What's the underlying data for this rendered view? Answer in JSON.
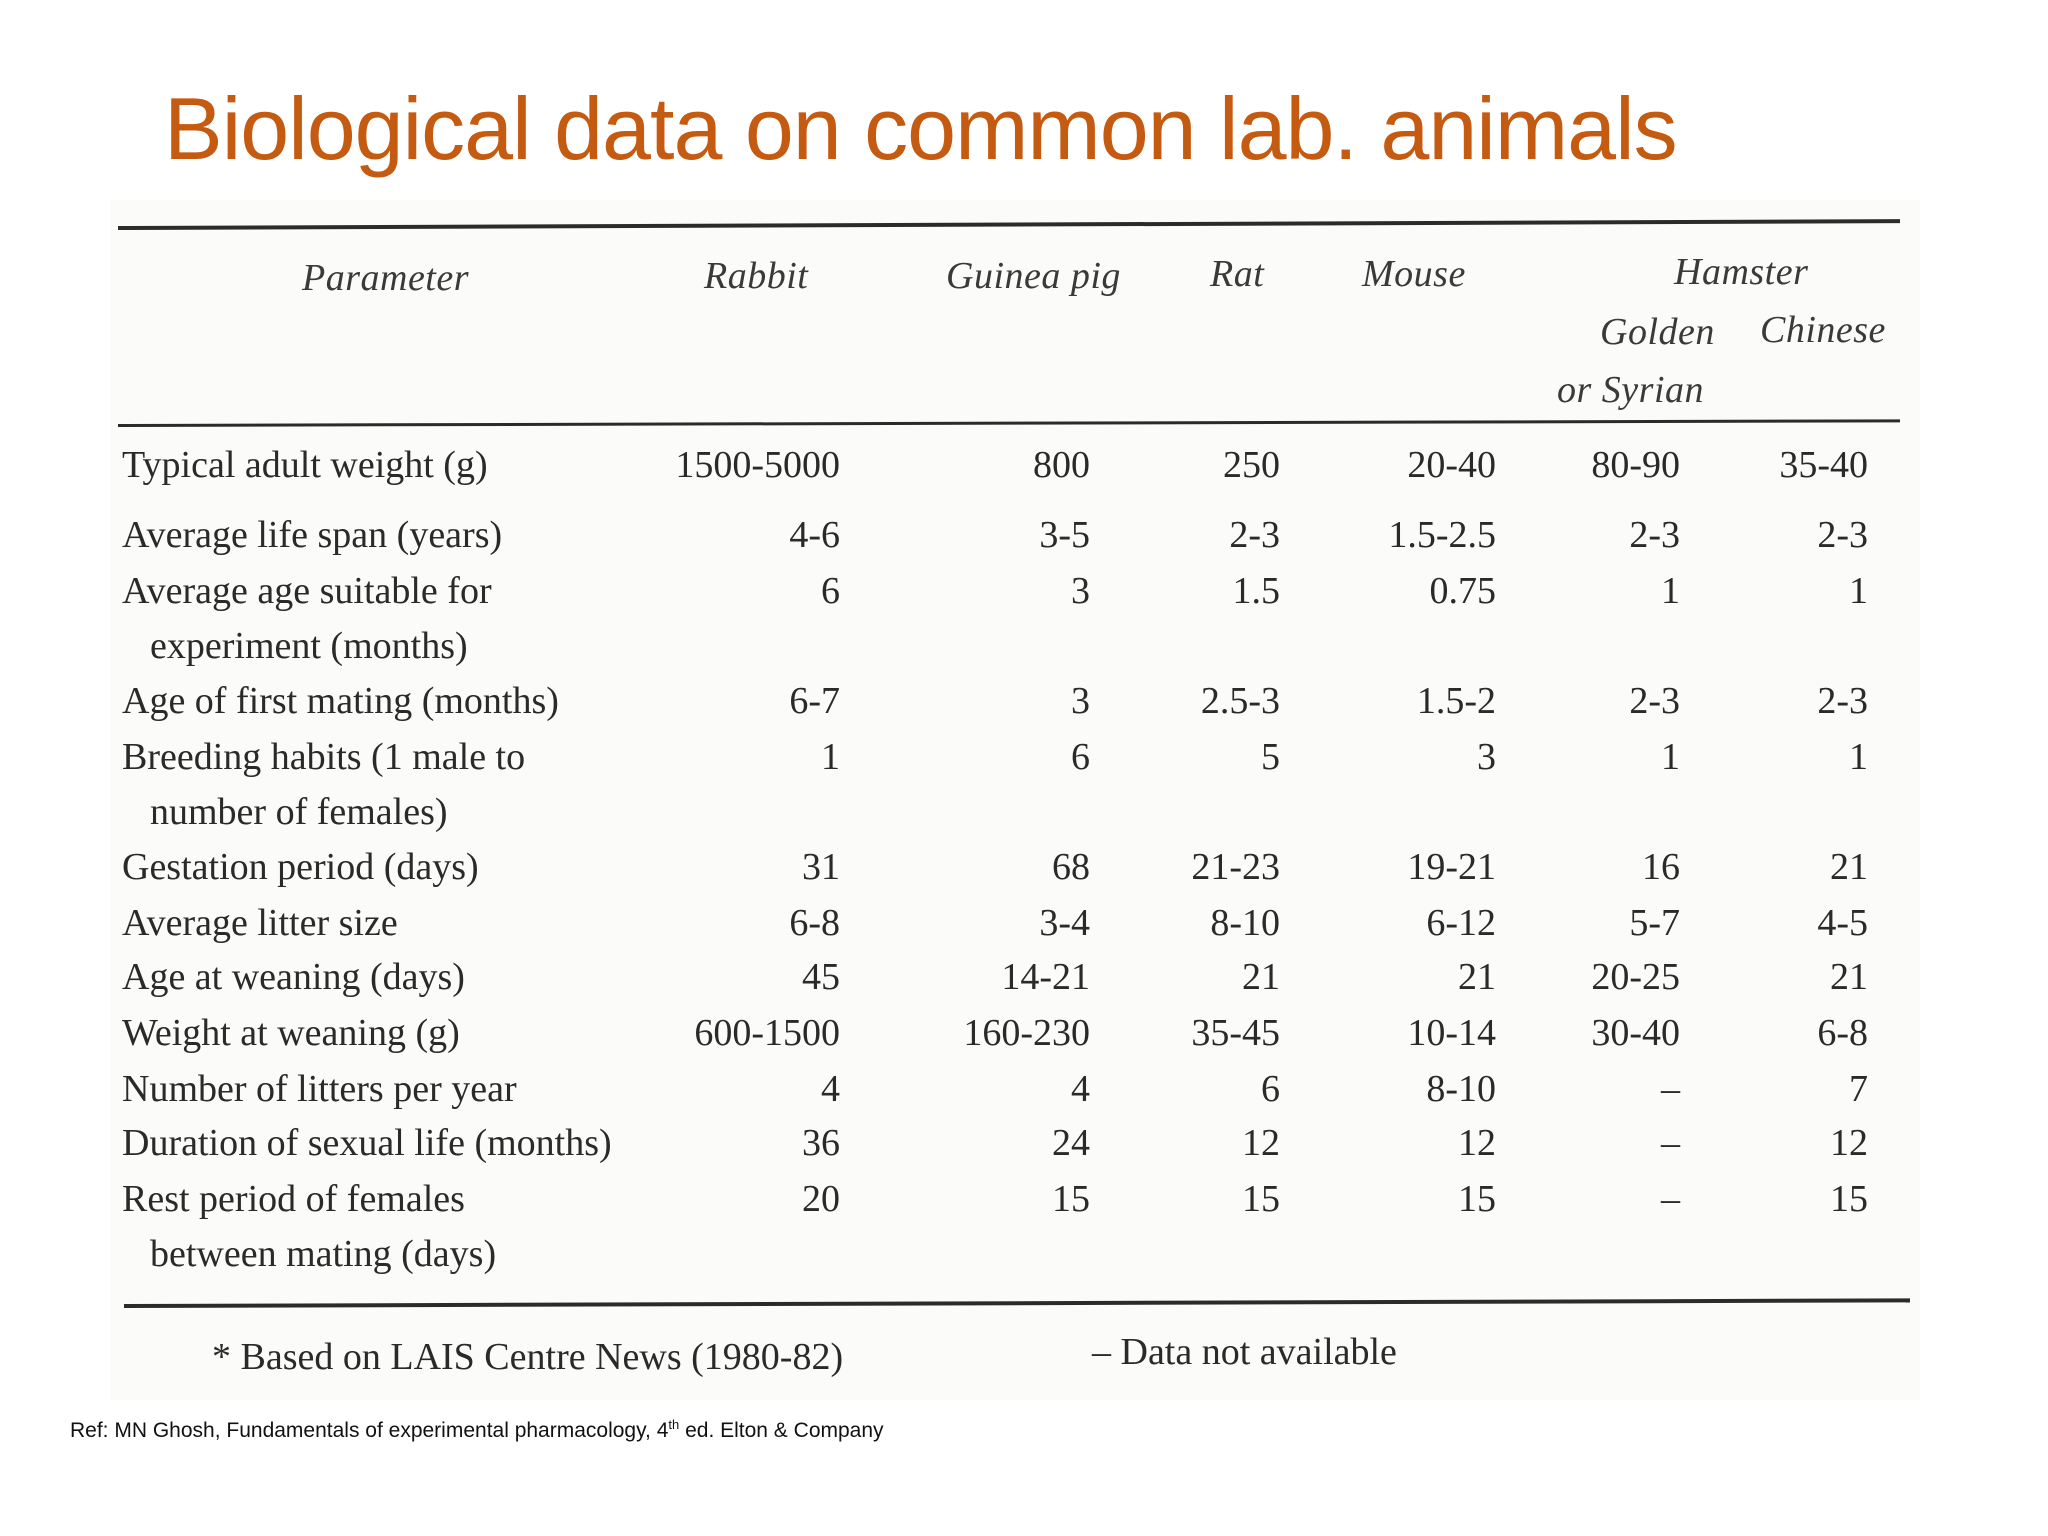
{
  "title": "Biological data on common lab. animals",
  "table": {
    "header": {
      "parameter": "Parameter",
      "rabbit": "Rabbit",
      "guinea_pig": "Guinea pig",
      "rat": "Rat",
      "mouse": "Mouse",
      "hamster": "Hamster",
      "golden": "Golden",
      "or_syrian": "or Syrian",
      "chinese": "Chinese"
    },
    "rows": [
      {
        "label": "Typical adult weight (g)",
        "label2": "",
        "values": [
          "1500-5000",
          "800",
          "250",
          "20-40",
          "80-90",
          "35-40"
        ]
      },
      {
        "label": "Average life span (years)",
        "label2": "",
        "values": [
          "4-6",
          "3-5",
          "2-3",
          "1.5-2.5",
          "2-3",
          "2-3"
        ]
      },
      {
        "label": "Average age suitable for",
        "label2": "experiment (months)",
        "values": [
          "6",
          "3",
          "1.5",
          "0.75",
          "1",
          "1"
        ]
      },
      {
        "label": "Age of first mating (months)",
        "label2": "",
        "values": [
          "6-7",
          "3",
          "2.5-3",
          "1.5-2",
          "2-3",
          "2-3"
        ]
      },
      {
        "label": "Breeding habits (1 male to",
        "label2": "number of females)",
        "values": [
          "1",
          "6",
          "5",
          "3",
          "1",
          "1"
        ]
      },
      {
        "label": "Gestation period (days)",
        "label2": "",
        "values": [
          "31",
          "68",
          "21-23",
          "19-21",
          "16",
          "21"
        ]
      },
      {
        "label": "Average litter size",
        "label2": "",
        "values": [
          "6-8",
          "3-4",
          "8-10",
          "6-12",
          "5-7",
          "4-5"
        ]
      },
      {
        "label": "Age at weaning (days)",
        "label2": "",
        "values": [
          "45",
          "14-21",
          "21",
          "21",
          "20-25",
          "21"
        ]
      },
      {
        "label": "Weight at weaning (g)",
        "label2": "",
        "values": [
          "600-1500",
          "160-230",
          "35-45",
          "10-14",
          "30-40",
          "6-8"
        ]
      },
      {
        "label": "Number of litters per year",
        "label2": "",
        "values": [
          "4",
          "4",
          "6",
          "8-10",
          "–",
          "7"
        ]
      },
      {
        "label": "Duration of sexual life (months)",
        "label2": "",
        "values": [
          "36",
          "24",
          "12",
          "12",
          "–",
          "12"
        ]
      },
      {
        "label": "Rest period of females",
        "label2": "between mating (days)",
        "values": [
          "20",
          "15",
          "15",
          "15",
          "–",
          "15"
        ]
      }
    ],
    "footnote_source": "* Based on LAIS Centre News (1980-82)",
    "footnote_na": "– Data not available"
  },
  "reference": {
    "prefix": "Ref: MN Ghosh, Fundamentals of experimental pharmacology, 4",
    "sup": "th",
    "suffix": " ed. Elton & Company"
  }
}
